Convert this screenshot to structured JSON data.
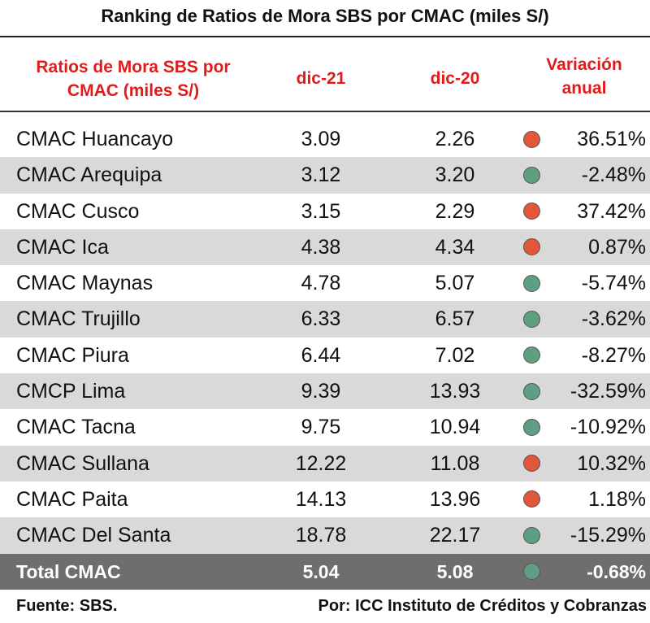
{
  "title": "Ranking de Ratios de Mora SBS por CMAC (miles S/)",
  "headers": {
    "name_line1": "Ratios de Mora SBS por",
    "name_line2": "CMAC (miles S/)",
    "col1": "dic-21",
    "col2": "dic-20",
    "var_line1": "Variación",
    "var_line2": "anual"
  },
  "colors": {
    "header_text": "#e11b1b",
    "increase": "#e2573a",
    "decrease": "#5f9e80",
    "shaded_row": "#d9d9d9",
    "total_row": "#6e6e6e"
  },
  "chart_data": {
    "type": "table",
    "columns": [
      "Ratios de Mora SBS por CMAC (miles S/)",
      "dic-21",
      "dic-20",
      "Variación anual"
    ],
    "rows": [
      {
        "name": "CMAC Huancayo",
        "dic21": "3.09",
        "dic20": "2.26",
        "trend": "up",
        "variation": "36.51%"
      },
      {
        "name": "CMAC Arequipa",
        "dic21": "3.12",
        "dic20": "3.20",
        "trend": "down",
        "variation": "-2.48%"
      },
      {
        "name": "CMAC Cusco",
        "dic21": "3.15",
        "dic20": "2.29",
        "trend": "up",
        "variation": "37.42%"
      },
      {
        "name": "CMAC Ica",
        "dic21": "4.38",
        "dic20": "4.34",
        "trend": "up",
        "variation": "0.87%"
      },
      {
        "name": "CMAC Maynas",
        "dic21": "4.78",
        "dic20": "5.07",
        "trend": "down",
        "variation": "-5.74%"
      },
      {
        "name": "CMAC Trujillo",
        "dic21": "6.33",
        "dic20": "6.57",
        "trend": "down",
        "variation": "-3.62%"
      },
      {
        "name": "CMAC Piura",
        "dic21": "6.44",
        "dic20": "7.02",
        "trend": "down",
        "variation": "-8.27%"
      },
      {
        "name": "CMCP Lima",
        "dic21": "9.39",
        "dic20": "13.93",
        "trend": "down",
        "variation": "-32.59%"
      },
      {
        "name": "CMAC Tacna",
        "dic21": "9.75",
        "dic20": "10.94",
        "trend": "down",
        "variation": "-10.92%"
      },
      {
        "name": "CMAC Sullana",
        "dic21": "12.22",
        "dic20": "11.08",
        "trend": "up",
        "variation": "10.32%"
      },
      {
        "name": "CMAC Paita",
        "dic21": "14.13",
        "dic20": "13.96",
        "trend": "up",
        "variation": "1.18%"
      },
      {
        "name": "CMAC Del Santa",
        "dic21": "18.78",
        "dic20": "22.17",
        "trend": "down",
        "variation": "-15.29%"
      }
    ],
    "total": {
      "name": "Total CMAC",
      "dic21": "5.04",
      "dic20": "5.08",
      "trend": "down",
      "variation": "-0.68%"
    }
  },
  "footer": {
    "source": "Fuente: SBS.",
    "author": "Por: ICC Instituto de Créditos y Cobranzas"
  }
}
